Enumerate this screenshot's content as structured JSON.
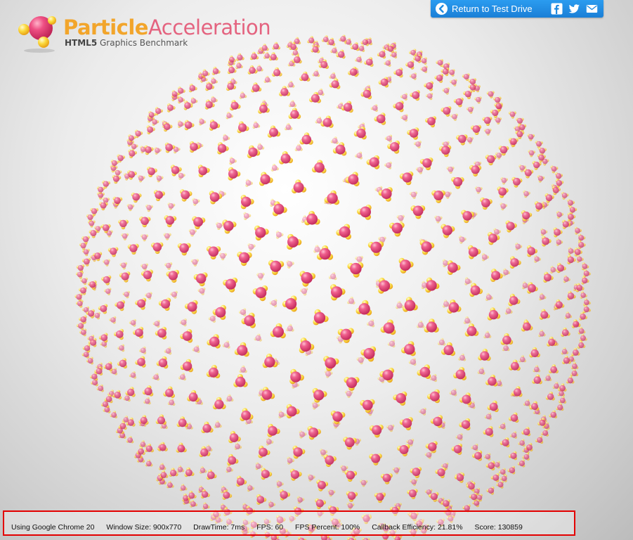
{
  "logo": {
    "title_part1": "Particle",
    "title_part2": "Acceleration",
    "subtitle_strong": "HTML5",
    "subtitle_rest": " Graphics Benchmark"
  },
  "topbar": {
    "return_label": "Return to Test Drive",
    "icons": [
      "back-arrow-icon",
      "facebook-icon",
      "twitter-icon",
      "email-icon"
    ]
  },
  "colors": {
    "particle_core": "#e5457a",
    "particle_electron": "#f7d43a",
    "topbar": "#1f8ae0",
    "status_border": "#e30000"
  },
  "status": {
    "browser": "Using Google Chrome 20",
    "window_size": "Window Size: 900x770",
    "draw_time": "DrawTime: 7ms",
    "fps": "FPS: 60",
    "fps_percent": "FPS Percent: 100%",
    "callback_efficiency": "Callback Efficiency: 21.81%",
    "score": "Score: 130859"
  }
}
